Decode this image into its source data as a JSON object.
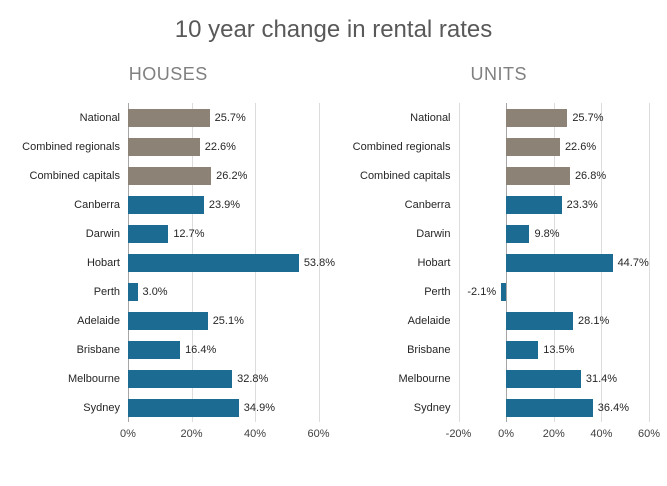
{
  "title": "10 year change in rental rates",
  "colors": {
    "aggregate_bar": "#8c8275",
    "city_bar": "#1c6b93",
    "title_text": "#595959",
    "subtitle_text": "#808080"
  },
  "chart_data": [
    {
      "type": "bar",
      "orientation": "horizontal",
      "title": "HOUSES",
      "categories": [
        "National",
        "Combined regionals",
        "Combined capitals",
        "Canberra",
        "Darwin",
        "Hobart",
        "Perth",
        "Adelaide",
        "Brisbane",
        "Melbourne",
        "Sydney"
      ],
      "values": [
        25.7,
        22.6,
        26.2,
        23.9,
        12.7,
        53.8,
        3.0,
        25.1,
        16.4,
        32.8,
        34.9
      ],
      "labels": [
        "25.7%",
        "22.6%",
        "26.2%",
        "23.9%",
        "12.7%",
        "53.8%",
        "3.0%",
        "25.1%",
        "16.4%",
        "32.8%",
        "34.9%"
      ],
      "aggregate_rows": 3,
      "xlim": [
        0,
        60
      ],
      "xticks": [
        "0%",
        "20%",
        "40%",
        "60%"
      ],
      "xtick_values": [
        0,
        20,
        40,
        60
      ],
      "grid": true,
      "legend": false
    },
    {
      "type": "bar",
      "orientation": "horizontal",
      "title": "UNITS",
      "categories": [
        "National",
        "Combined regionals",
        "Combined capitals",
        "Canberra",
        "Darwin",
        "Hobart",
        "Perth",
        "Adelaide",
        "Brisbane",
        "Melbourne",
        "Sydney"
      ],
      "values": [
        25.7,
        22.6,
        26.8,
        23.3,
        9.8,
        44.7,
        -2.1,
        28.1,
        13.5,
        31.4,
        36.4
      ],
      "labels": [
        "25.7%",
        "22.6%",
        "26.8%",
        "23.3%",
        "9.8%",
        "44.7%",
        "-2.1%",
        "28.1%",
        "13.5%",
        "31.4%",
        "36.4%"
      ],
      "aggregate_rows": 3,
      "xlim": [
        -20,
        60
      ],
      "xticks": [
        "-20%",
        "0%",
        "20%",
        "40%",
        "60%"
      ],
      "xtick_values": [
        -20,
        0,
        20,
        40,
        60
      ],
      "grid": true,
      "legend": false
    }
  ]
}
